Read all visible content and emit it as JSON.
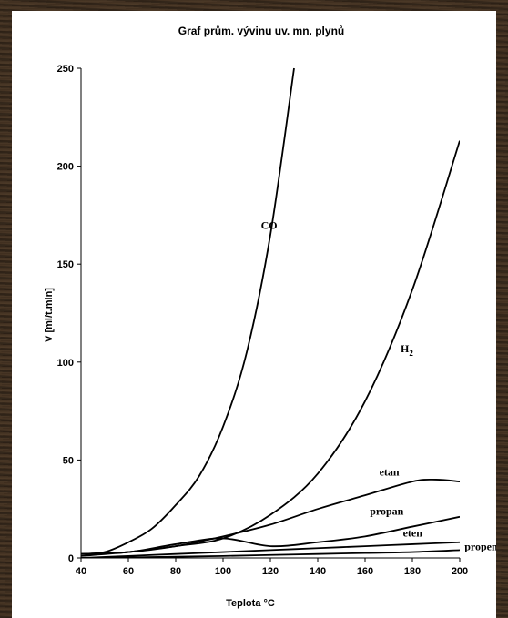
{
  "chart_data": {
    "type": "line",
    "title": "Graf prům. vývinu uv. mn. plynů",
    "xlabel": "Teplota °C",
    "ylabel": "V [ml/t.min]",
    "xlim": [
      40,
      200
    ],
    "ylim": [
      0,
      250
    ],
    "xticks": [
      "40",
      "60",
      "80",
      "100",
      "120",
      "140",
      "160",
      "180",
      "200"
    ],
    "yticks": [
      "0",
      "50",
      "100",
      "150",
      "200",
      "250"
    ],
    "grid": false,
    "legend": "none",
    "line_color": "#000000",
    "series": [
      {
        "name": "CO",
        "x": [
          40,
          50,
          60,
          70,
          80,
          90,
          100,
          110,
          120,
          130
        ],
        "y": [
          2,
          3,
          8,
          15,
          27,
          42,
          67,
          105,
          165,
          250
        ],
        "label": "CO",
        "label_at": [
          116,
          168
        ]
      },
      {
        "name": "H",
        "label_sub": "2",
        "x": [
          40,
          60,
          80,
          100,
          120,
          140,
          160,
          180,
          200
        ],
        "y": [
          1,
          3,
          6,
          10,
          22,
          43,
          80,
          137,
          213
        ],
        "label": "H",
        "label_at": [
          175,
          105
        ]
      },
      {
        "name": "etan",
        "x": [
          40,
          60,
          80,
          100,
          120,
          140,
          160,
          180,
          190,
          200
        ],
        "y": [
          2,
          3,
          6,
          11,
          17,
          25,
          32,
          39,
          40,
          39
        ],
        "label": "etan",
        "label_at": [
          166,
          42
        ]
      },
      {
        "name": "propan",
        "x": [
          40,
          60,
          80,
          100,
          120,
          140,
          160,
          180,
          200
        ],
        "y": [
          2,
          3,
          7,
          10,
          6,
          8,
          11,
          16,
          21
        ],
        "label": "propan",
        "label_at": [
          162,
          22
        ]
      },
      {
        "name": "eten",
        "x": [
          40,
          60,
          80,
          100,
          120,
          140,
          160,
          180,
          200
        ],
        "y": [
          0,
          1,
          2,
          3,
          4,
          5,
          6,
          7,
          8
        ],
        "label": "eten",
        "label_at": [
          176,
          11
        ]
      },
      {
        "name": "propen",
        "x": [
          40,
          60,
          80,
          100,
          120,
          140,
          160,
          180,
          200
        ],
        "y": [
          0,
          0.3,
          0.6,
          1,
          1.5,
          2,
          2.5,
          3,
          4
        ],
        "label": "propen",
        "label_at": [
          202,
          4
        ]
      }
    ]
  }
}
